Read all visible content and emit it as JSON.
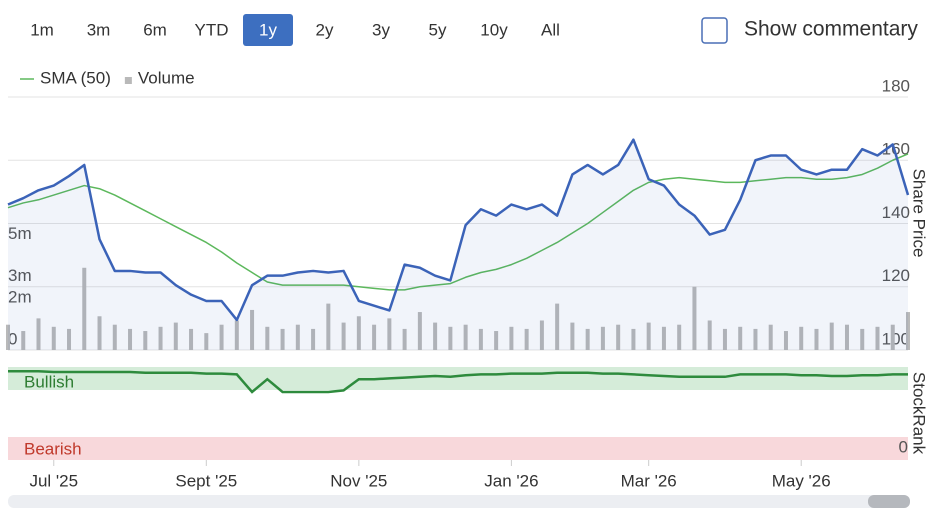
{
  "ui": {
    "ranges": [
      "1m",
      "3m",
      "6m",
      "YTD",
      "1y",
      "2y",
      "3y",
      "5y",
      "10y",
      "All"
    ],
    "active": "1y",
    "checkbox_label": "Show commentary"
  },
  "chart_data": [
    {
      "type": "line",
      "ylabel": "Share Price",
      "categories": [
        null,
        null,
        null,
        "Jul '25",
        null,
        null,
        null,
        null,
        null,
        null,
        null,
        null,
        null,
        "Sept '25",
        null,
        null,
        null,
        null,
        null,
        null,
        null,
        null,
        null,
        "Nov '25",
        null,
        null,
        null,
        null,
        null,
        null,
        null,
        null,
        null,
        "Jan '26",
        null,
        null,
        null,
        null,
        null,
        null,
        null,
        null,
        "Mar '26",
        null,
        null,
        null,
        null,
        null,
        null,
        null,
        null,
        null,
        "May '26",
        null,
        null,
        null,
        null,
        null,
        null,
        null
      ],
      "series": [
        {
          "color": "#3b63b8",
          "values": [
            146,
            148,
            150.5,
            152,
            155,
            158.5,
            135,
            125,
            125,
            124.5,
            124.5,
            120.5,
            117.5,
            115.5,
            115.5,
            109.5,
            120.5,
            123.5,
            123.5,
            124.5,
            125,
            124.5,
            125,
            115.5,
            114,
            112.5,
            127,
            126,
            123.5,
            122,
            139.5,
            144.5,
            142.5,
            146,
            144.5,
            146,
            142.5,
            155.5,
            158.5,
            155.5,
            158.5,
            166.5,
            154,
            152,
            146,
            142.5,
            136.5,
            138,
            147.5,
            160,
            161.5,
            161.5,
            157,
            155.5,
            157,
            157,
            163.5,
            161.5,
            165,
            149
          ]
        },
        {
          "name": "SMA (50)",
          "color": "#5cb85c",
          "values": [
            145,
            146.5,
            147.5,
            149,
            150.5,
            152,
            151,
            149,
            146.5,
            144,
            141.5,
            139,
            136.5,
            134,
            131,
            127.5,
            124.5,
            121.5,
            120.5,
            120.5,
            120.5,
            120.5,
            120.5,
            120,
            119.5,
            119,
            119,
            120,
            120.5,
            121,
            123,
            124.5,
            125.5,
            127,
            129,
            131.5,
            134,
            137,
            140,
            143.5,
            147,
            150.5,
            153,
            154,
            154.5,
            154,
            153.5,
            153,
            153,
            153.5,
            154,
            154.5,
            154.5,
            154,
            154,
            154.5,
            155.5,
            157.5,
            160,
            162
          ]
        },
        {
          "name": "Volume",
          "color": "#b9b9b9",
          "axis": "y2",
          "type": "bar",
          "values": [
            1.2,
            0.9,
            1.5,
            1.1,
            1.0,
            3.9,
            1.6,
            1.2,
            1.0,
            0.9,
            1.1,
            1.3,
            1.0,
            0.8,
            1.2,
            1.4,
            1.9,
            1.1,
            1.0,
            1.2,
            1.0,
            2.2,
            1.3,
            1.6,
            1.2,
            1.5,
            1.0,
            1.8,
            1.3,
            1.1,
            1.2,
            1.0,
            0.9,
            1.1,
            1.0,
            1.4,
            2.2,
            1.3,
            1.0,
            1.1,
            1.2,
            1.0,
            1.3,
            1.1,
            1.2,
            3.0,
            1.4,
            1.0,
            1.1,
            1.0,
            1.2,
            0.9,
            1.1,
            1.0,
            1.3,
            1.2,
            1.0,
            1.1,
            1.2,
            1.8
          ]
        }
      ],
      "ylim": [
        100,
        180
      ],
      "yticks": [
        100,
        120,
        140,
        160,
        180
      ],
      "y2lim": [
        0,
        12
      ],
      "y2ticks": [
        0,
        {
          "value": 2,
          "label": "2m"
        },
        {
          "value": 3,
          "label": "3m"
        },
        {
          "value": 5,
          "label": "5m"
        }
      ],
      "grid": true
    },
    {
      "type": "line",
      "ylabel": "StockRank",
      "color": "#2e8b3d",
      "bands": [
        "Bullish",
        "Bearish"
      ],
      "values": [
        96,
        96,
        96,
        95,
        95,
        95,
        95,
        95,
        95,
        94,
        94,
        94,
        94,
        93,
        93,
        92,
        70,
        86,
        70,
        70,
        70,
        70,
        72,
        86,
        86,
        87,
        88,
        89,
        90,
        89,
        91,
        92,
        92,
        93,
        93,
        93,
        94,
        94,
        94,
        93,
        93,
        92,
        91,
        90,
        89,
        89,
        89,
        89,
        92,
        92,
        92,
        92,
        91,
        91,
        90,
        90,
        91,
        91,
        92,
        92
      ],
      "ylim": [
        0,
        100
      ],
      "yticks": [
        0
      ]
    }
  ]
}
